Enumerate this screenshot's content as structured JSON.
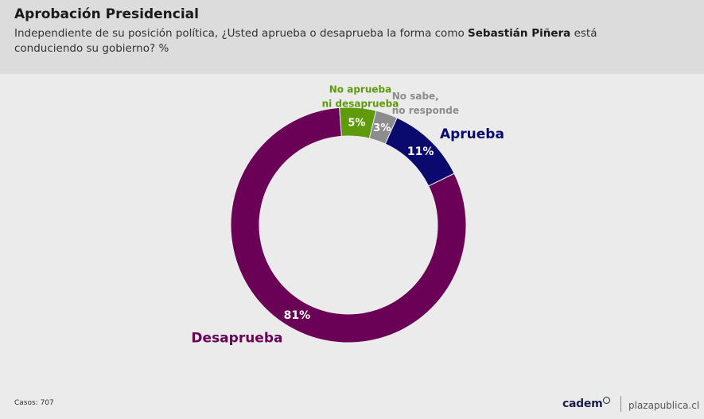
{
  "header": {
    "title": "Aprobación Presidencial",
    "subtitle_pre": "Independiente de su posición política, ¿Usted aprueba o desaprueba la forma como ",
    "subtitle_bold": "Sebastián Piñera",
    "subtitle_post": " está conduciendo su gobierno? %"
  },
  "chart_data": {
    "type": "pie",
    "title": "Aprobación Presidencial",
    "slices": [
      {
        "label_lines": [
          "Desaprueba"
        ],
        "value": 81,
        "value_label": "81%",
        "color": "#6b0057",
        "label_color": "#6b0057"
      },
      {
        "label_lines": [
          "No aprueba",
          "ni desaprueba"
        ],
        "value": 5,
        "value_label": "5%",
        "color": "#5e9a0a",
        "label_color": "#5e9a0a"
      },
      {
        "label_lines": [
          "No sabe,",
          "no responde"
        ],
        "value": 3,
        "value_label": "3%",
        "color": "#8c8c8c",
        "label_color": "#8c8c8c"
      },
      {
        "label_lines": [
          "Aprueba"
        ],
        "value": 11,
        "value_label": "11%",
        "color": "#0a0a6e",
        "label_color": "#0a0a6e"
      }
    ]
  },
  "footer": {
    "cases": "Casos: 707",
    "brand": "cadem",
    "site": "plazapublica.cl"
  }
}
